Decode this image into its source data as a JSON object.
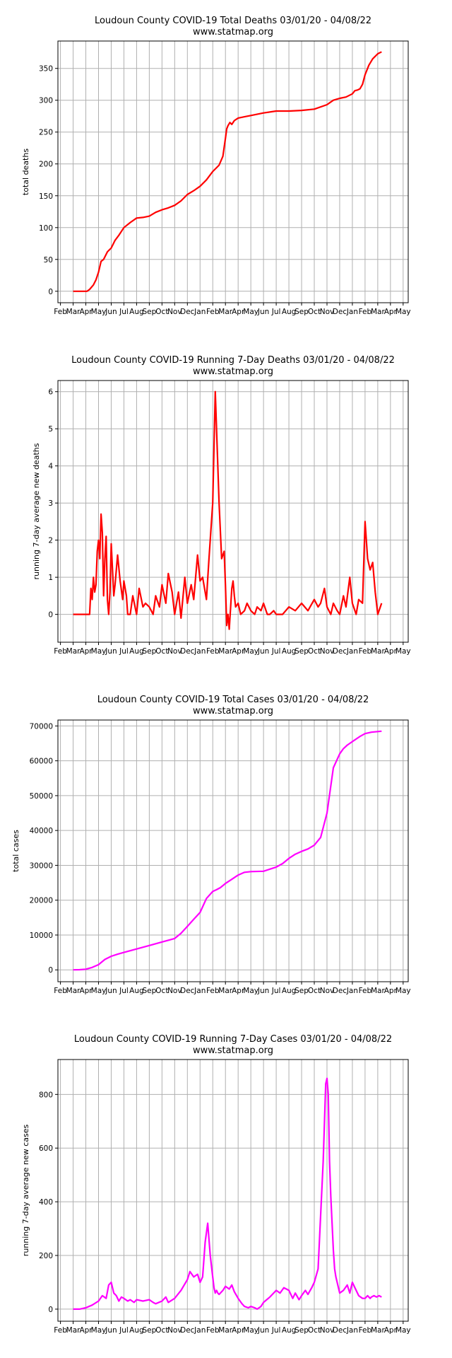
{
  "chart_data": [
    {
      "type": "line",
      "title": "Loudoun County COVID-19 Total Deaths 03/01/20 - 04/08/22",
      "subtitle": "www.statmap.org",
      "xlabel": "",
      "ylabel": "total deaths",
      "color": "#ff0000",
      "grid": true,
      "ylim": [
        -18,
        393
      ],
      "yticks": [
        0,
        50,
        100,
        150,
        200,
        250,
        300,
        350
      ],
      "ytick_labels": [
        "0",
        "50",
        "100",
        "150",
        "200",
        "250",
        "300",
        "350"
      ],
      "series": [
        {
          "x": [
            0,
            0.6,
            1.1,
            1.3,
            1.6,
            1.8,
            2.0,
            2.2,
            2.4,
            2.7,
            3.0,
            3.3,
            3.6,
            4.0,
            4.5,
            5.0,
            5.5,
            6.0,
            6.5,
            7.0,
            7.5,
            8.0,
            8.5,
            9.0,
            9.5,
            10.0,
            10.5,
            11.0,
            11.5,
            11.8,
            12.0,
            12.1,
            12.2,
            12.35,
            12.5,
            12.7,
            13.0,
            13.5,
            14.0,
            15.0,
            16.0,
            17.0,
            18.0,
            19.0,
            20.0,
            20.5,
            21.0,
            21.5,
            22.0,
            22.2,
            22.4,
            22.6,
            22.8,
            23.0,
            23.3,
            23.6,
            24.0,
            24.3
          ],
          "y": [
            0,
            0,
            0,
            3,
            10,
            18,
            30,
            47,
            50,
            62,
            68,
            80,
            88,
            100,
            108,
            115,
            116,
            118,
            124,
            128,
            131,
            135,
            142,
            152,
            158,
            165,
            175,
            188,
            198,
            212,
            240,
            255,
            260,
            265,
            262,
            268,
            272,
            274,
            276,
            280,
            283,
            283,
            284,
            286,
            293,
            300,
            303,
            305,
            310,
            315,
            316,
            318,
            325,
            340,
            355,
            365,
            373,
            376
          ]
        }
      ]
    },
    {
      "type": "line",
      "title": "Loudoun County COVID-19 Running 7-Day Deaths 03/01/20 - 04/08/22",
      "subtitle": "www.statmap.org",
      "xlabel": "",
      "ylabel": "running 7-day average new deaths",
      "color": "#ff0000",
      "grid": true,
      "ylim": [
        -0.75,
        6.3
      ],
      "yticks": [
        0,
        1,
        2,
        3,
        4,
        5,
        6
      ],
      "ytick_labels": [
        "0",
        "1",
        "2",
        "3",
        "4",
        "5",
        "6"
      ],
      "series": [
        {
          "x": [
            0,
            1.3,
            1.4,
            1.5,
            1.6,
            1.7,
            1.8,
            1.9,
            2.0,
            2.1,
            2.2,
            2.3,
            2.4,
            2.5,
            2.6,
            2.7,
            2.8,
            2.9,
            3.0,
            3.1,
            3.2,
            3.3,
            3.5,
            3.7,
            3.9,
            4.0,
            4.2,
            4.3,
            4.5,
            4.7,
            5.0,
            5.2,
            5.5,
            5.7,
            6.0,
            6.3,
            6.5,
            6.8,
            7.0,
            7.3,
            7.5,
            7.8,
            8.0,
            8.3,
            8.5,
            8.8,
            9.0,
            9.3,
            9.5,
            9.8,
            10.0,
            10.2,
            10.5,
            10.7,
            11.0,
            11.2,
            11.5,
            11.7,
            11.9,
            12.0,
            12.1,
            12.2,
            12.3,
            12.5,
            12.6,
            12.7,
            12.8,
            13.0,
            13.2,
            13.5,
            13.7,
            14.0,
            14.3,
            14.5,
            14.8,
            15.0,
            15.3,
            15.5,
            15.8,
            16.0,
            16.5,
            17.0,
            17.5,
            18.0,
            18.5,
            19.0,
            19.3,
            19.5,
            19.8,
            20.0,
            20.3,
            20.5,
            20.8,
            21.0,
            21.3,
            21.5,
            21.8,
            22.0,
            22.3,
            22.5,
            22.8,
            23.0,
            23.2,
            23.4,
            23.6,
            23.8,
            24.0,
            24.3
          ],
          "y": [
            0,
            0,
            0.7,
            0.4,
            1.0,
            0.6,
            0.8,
            1.7,
            2.0,
            1.5,
            2.7,
            2.2,
            0.5,
            1.5,
            2.1,
            0.4,
            0.0,
            0.6,
            1.9,
            1.2,
            0.5,
            0.8,
            1.6,
            0.9,
            0.4,
            0.9,
            0.5,
            0.0,
            0.0,
            0.5,
            0.0,
            0.7,
            0.2,
            0.3,
            0.2,
            0.0,
            0.5,
            0.2,
            0.8,
            0.3,
            1.1,
            0.6,
            0.0,
            0.6,
            -0.1,
            1.0,
            0.3,
            0.8,
            0.4,
            1.6,
            0.9,
            1.0,
            0.4,
            1.5,
            3.0,
            6.0,
            3.0,
            1.5,
            1.7,
            0.8,
            -0.3,
            0.0,
            -0.4,
            0.7,
            0.9,
            0.5,
            0.2,
            0.3,
            0.0,
            0.1,
            0.3,
            0.1,
            0.0,
            0.2,
            0.1,
            0.3,
            0.0,
            0.0,
            0.1,
            0.0,
            0.0,
            0.2,
            0.1,
            0.3,
            0.1,
            0.4,
            0.2,
            0.3,
            0.7,
            0.2,
            0.0,
            0.3,
            0.1,
            0.0,
            0.5,
            0.2,
            1.0,
            0.3,
            0.0,
            0.4,
            0.3,
            2.5,
            1.5,
            1.2,
            1.4,
            0.6,
            0.0,
            0.3
          ]
        }
      ]
    },
    {
      "type": "line",
      "title": "Loudoun County COVID-19 Total Cases 03/01/20 - 04/08/22",
      "subtitle": "www.statmap.org",
      "xlabel": "",
      "ylabel": "total cases",
      "color": "#ff00ff",
      "grid": true,
      "ylim": [
        -3400,
        71700
      ],
      "yticks": [
        0,
        10000,
        20000,
        30000,
        40000,
        50000,
        60000,
        70000
      ],
      "ytick_labels": [
        "0",
        "10000",
        "20000",
        "30000",
        "40000",
        "50000",
        "60000",
        "70000"
      ],
      "series": [
        {
          "x": [
            0,
            0.5,
            1.0,
            1.5,
            2.0,
            2.5,
            3.0,
            3.5,
            4.0,
            5.0,
            6.0,
            7.0,
            8.0,
            8.5,
            9.0,
            9.5,
            10.0,
            10.5,
            11.0,
            11.3,
            11.6,
            12.0,
            12.5,
            13.0,
            13.5,
            14.0,
            15.0,
            16.0,
            16.5,
            17.0,
            17.5,
            18.0,
            18.5,
            19.0,
            19.5,
            20.0,
            20.5,
            21.0,
            21.3,
            21.6,
            21.8,
            22.0,
            22.2,
            22.4,
            22.6,
            23.0,
            23.5,
            24.0,
            24.3
          ],
          "y": [
            0,
            50,
            200,
            700,
            1500,
            3000,
            3900,
            4500,
            5000,
            6000,
            7000,
            8000,
            9000,
            10500,
            12500,
            14500,
            16500,
            20500,
            22500,
            23000,
            23600,
            24800,
            26000,
            27200,
            28000,
            28200,
            28300,
            29500,
            30500,
            32000,
            33200,
            34000,
            34700,
            35800,
            38000,
            45000,
            58000,
            62000,
            63500,
            64500,
            65000,
            65500,
            66000,
            66500,
            67000,
            67800,
            68200,
            68400,
            68500
          ]
        }
      ]
    },
    {
      "type": "line",
      "title": "Loudoun County COVID-19 Running 7-Day Cases 03/01/20 - 04/08/22",
      "subtitle": "www.statmap.org",
      "xlabel": "",
      "ylabel": "running 7-day average new cases",
      "color": "#ff00ff",
      "grid": true,
      "ylim": [
        -45,
        930
      ],
      "yticks": [
        0,
        200,
        400,
        600,
        800
      ],
      "ytick_labels": [
        "0",
        "200",
        "400",
        "600",
        "800"
      ],
      "series": [
        {
          "x": [
            0,
            0.5,
            1.0,
            1.5,
            2.0,
            2.3,
            2.6,
            2.8,
            3.0,
            3.2,
            3.4,
            3.6,
            3.8,
            4.0,
            4.3,
            4.5,
            4.8,
            5.0,
            5.5,
            6.0,
            6.3,
            6.5,
            7.0,
            7.3,
            7.5,
            8.0,
            8.5,
            9.0,
            9.2,
            9.5,
            9.8,
            10.0,
            10.2,
            10.4,
            10.6,
            10.8,
            11.0,
            11.1,
            11.2,
            11.3,
            11.4,
            11.5,
            11.6,
            11.8,
            12.0,
            12.3,
            12.5,
            12.7,
            13.0,
            13.3,
            13.5,
            13.8,
            14.0,
            14.3,
            14.5,
            14.8,
            15.0,
            15.5,
            16.0,
            16.3,
            16.6,
            17.0,
            17.3,
            17.5,
            17.8,
            18.0,
            18.3,
            18.5,
            18.8,
            19.0,
            19.3,
            19.5,
            19.7,
            19.9,
            20.0,
            20.1,
            20.2,
            20.3,
            20.4,
            20.5,
            20.6,
            20.7,
            20.8,
            21.0,
            21.3,
            21.6,
            21.8,
            22.0,
            22.2,
            22.5,
            22.8,
            23.0,
            23.2,
            23.4,
            23.5,
            23.7,
            23.9,
            24.1,
            24.3
          ],
          "y": [
            0,
            0,
            5,
            15,
            30,
            50,
            40,
            90,
            100,
            60,
            50,
            30,
            45,
            40,
            30,
            35,
            25,
            35,
            30,
            35,
            25,
            20,
            30,
            45,
            25,
            40,
            70,
            110,
            140,
            120,
            130,
            100,
            120,
            250,
            320,
            200,
            120,
            80,
            60,
            70,
            60,
            55,
            60,
            70,
            85,
            75,
            90,
            65,
            40,
            20,
            10,
            5,
            10,
            5,
            0,
            10,
            25,
            45,
            70,
            60,
            80,
            70,
            40,
            60,
            35,
            50,
            70,
            55,
            80,
            100,
            150,
            350,
            550,
            840,
            860,
            800,
            550,
            420,
            320,
            220,
            150,
            120,
            100,
            60,
            70,
            90,
            60,
            100,
            80,
            50,
            40,
            40,
            50,
            40,
            45,
            50,
            45,
            50,
            45
          ]
        }
      ]
    }
  ],
  "x_axis": {
    "tick_labels": [
      "Feb",
      "Mar",
      "Apr",
      "May",
      "Jun",
      "Jul",
      "Aug",
      "Sep",
      "Oct",
      "Nov",
      "Dec",
      "Jan",
      "Feb",
      "Mar",
      "Apr",
      "May",
      "Jun",
      "Jul",
      "Aug",
      "Sep",
      "Oct",
      "Nov",
      "Dec",
      "Jan",
      "Feb",
      "Mar",
      "Apr",
      "May"
    ],
    "tick_positions": [
      -1,
      0,
      1,
      2,
      3,
      4,
      5,
      6,
      7,
      8,
      9,
      10,
      11,
      12,
      13,
      14,
      15,
      16,
      17,
      18,
      19,
      20,
      21,
      22,
      23,
      24,
      25,
      26
    ],
    "xlim": [
      -1.2,
      26.4
    ]
  }
}
